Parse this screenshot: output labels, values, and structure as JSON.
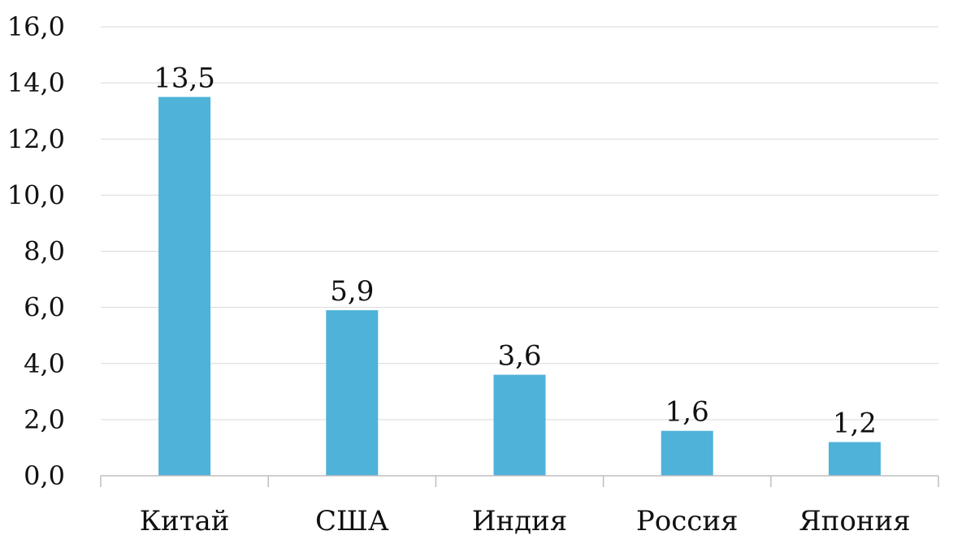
{
  "chart_data": {
    "type": "bar",
    "categories": [
      "Китай",
      "США",
      "Индия",
      "Россия",
      "Япония"
    ],
    "values": [
      13.5,
      5.9,
      3.6,
      1.6,
      1.2
    ],
    "value_labels": [
      "13,5",
      "5,9",
      "3,6",
      "1,6",
      "1,2"
    ],
    "title": "",
    "xlabel": "",
    "ylabel": "",
    "ylim": [
      0,
      16
    ],
    "yticks": [
      0,
      2,
      4,
      6,
      8,
      10,
      12,
      14,
      16
    ],
    "ytick_labels": [
      "0,0",
      "2,0",
      "4,0",
      "6,0",
      "8,0",
      "10,0",
      "12,0",
      "14,0",
      "16,0"
    ],
    "grid": true,
    "legend": "none",
    "bar_color": "#4fb2d9"
  }
}
